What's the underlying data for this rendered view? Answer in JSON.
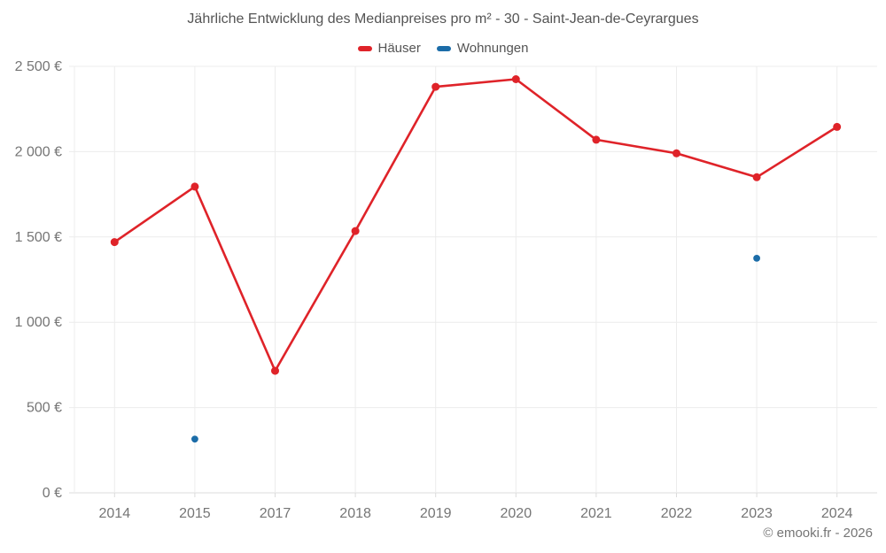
{
  "title": "Jährliche Entwicklung des Medianpreises pro m² - 30 - Saint-Jean-de-Ceyrargues",
  "legend": [
    {
      "label": "Häuser",
      "color": "#df2329"
    },
    {
      "label": "Wohnungen",
      "color": "#1b6ca8"
    }
  ],
  "footer": "© emooki.fr - 2026",
  "colors": {
    "grid": "#ececec",
    "axis_border": "#dcdcdc",
    "tick_label": "#757575"
  },
  "chart_data": {
    "type": "line",
    "title": "Jährliche Entwicklung des Medianpreises pro m² - 30 - Saint-Jean-de-Ceyrargues",
    "xlabel": "",
    "ylabel": "",
    "categories": [
      "2014",
      "2015",
      "2017",
      "2018",
      "2019",
      "2020",
      "2021",
      "2022",
      "2023",
      "2024"
    ],
    "series": [
      {
        "name": "Häuser",
        "type": "line",
        "color": "#df2329",
        "values": [
          1470,
          1795,
          715,
          1535,
          2380,
          2425,
          2070,
          1990,
          1850,
          2145
        ]
      },
      {
        "name": "Wohnungen",
        "type": "scatter",
        "color": "#1b6ca8",
        "values": [
          null,
          315,
          null,
          null,
          null,
          null,
          null,
          null,
          1375,
          null
        ]
      }
    ],
    "ylim": [
      0,
      2500
    ],
    "ytick_step": 500,
    "ytick_labels": [
      "0 €",
      "500 €",
      "1 000 €",
      "1 500 €",
      "2 000 €",
      "2 500 €"
    ],
    "grid": true,
    "legend_position": "top"
  }
}
